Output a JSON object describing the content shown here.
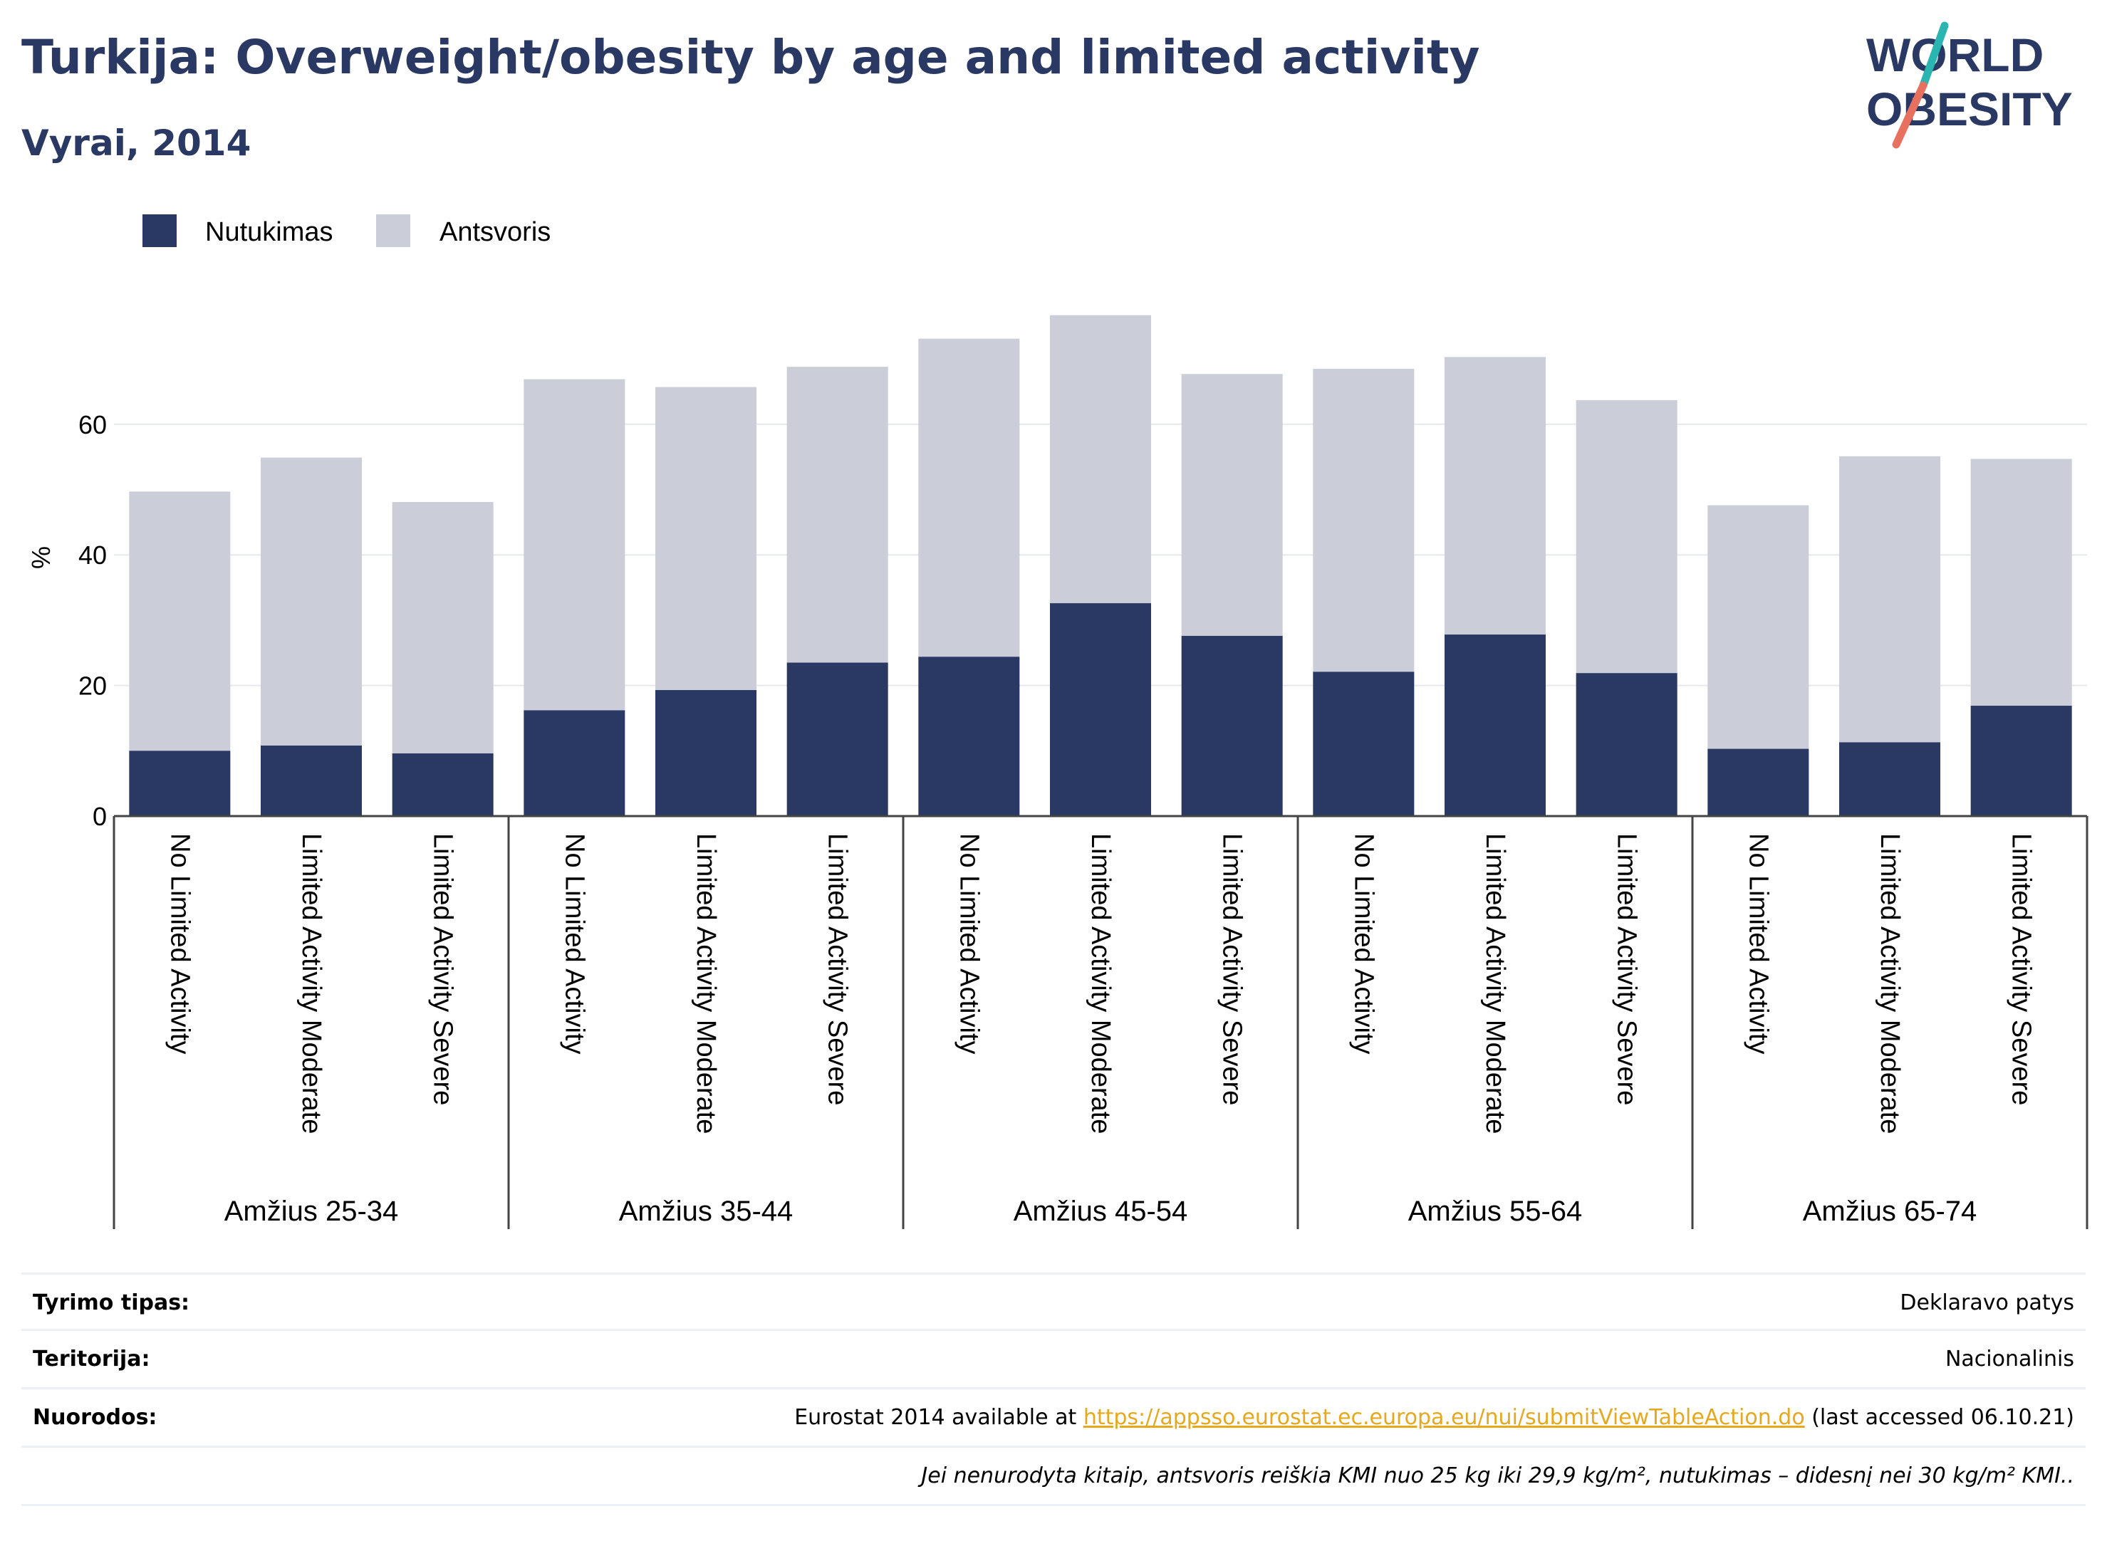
{
  "header": {
    "title": "Turkija: Overweight/obesity by age and limited activity",
    "subtitle": "Vyrai, 2014"
  },
  "logo": {
    "line1": "WORLD",
    "line2": "OBESITY"
  },
  "colors": {
    "obesity": "#2a3864",
    "overweight": "#cbcdd9",
    "title": "#2a3864",
    "link": "#e6a81e"
  },
  "chart_data": {
    "type": "bar",
    "stacked": true,
    "ylabel": "%",
    "ylim": [
      0,
      80
    ],
    "yticks": [
      0,
      20,
      40,
      60
    ],
    "grid": true,
    "legend_position": "top-left",
    "groups": [
      "Amžius 25-34",
      "Amžius 35-44",
      "Amžius 45-54",
      "Amžius 55-64",
      "Amžius 65-74"
    ],
    "categories": [
      "No Limited Activity",
      "Limited Activity Moderate",
      "Limited Activity Severe",
      "No Limited Activity",
      "Limited Activity Moderate",
      "Limited Activity Severe",
      "No Limited Activity",
      "Limited Activity Moderate",
      "Limited Activity Severe",
      "No Limited Activity",
      "Limited Activity Moderate",
      "Limited Activity Severe",
      "No Limited Activity",
      "Limited Activity Moderate",
      "Limited Activity Severe"
    ],
    "series": [
      {
        "name": "Nutukimas",
        "color": "#2a3864",
        "values": [
          10.0,
          10.8,
          9.6,
          16.2,
          19.3,
          23.5,
          24.4,
          32.6,
          27.6,
          22.1,
          27.8,
          21.9,
          10.3,
          11.3,
          16.9
        ]
      },
      {
        "name": "Antsvoris",
        "color": "#cbcdd9",
        "values": [
          39.7,
          44.1,
          38.5,
          50.7,
          46.4,
          45.3,
          48.7,
          44.1,
          40.1,
          46.4,
          42.5,
          41.8,
          37.3,
          43.8,
          37.8
        ]
      }
    ]
  },
  "info": {
    "rows": [
      {
        "label": "Tyrimo tipas:",
        "value": "Deklaravo patys"
      },
      {
        "label": "Teritorija:",
        "value": "Nacionalinis"
      }
    ],
    "refs": {
      "label": "Nuorodos:",
      "before": "Eurostat 2014 available at ",
      "link": "https://appsso.eurostat.ec.europa.eu/nui/submitViewTableAction.do",
      "after": " (last accessed 06.10.21)"
    },
    "footnote": "Jei nenurodyta kitaip, antsvoris reiškia KMI nuo 25 kg iki 29,9 kg/m², nutukimas – didesnį nei 30 kg/m² KMI.."
  }
}
